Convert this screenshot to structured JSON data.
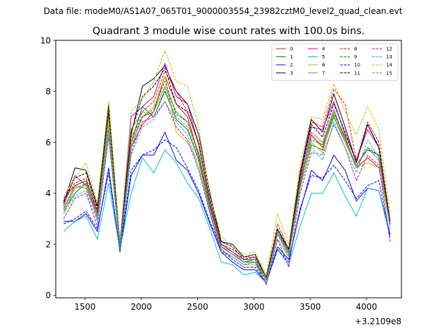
{
  "chart_data": {
    "type": "line",
    "suptitle": "Data file: modeM0/AS1A07_065T01_9000003554_23982cztM0_level2_quad_clean.evt",
    "title": "Quadrant 3 module wise count rates with 100.0s bins.",
    "xlabel": "",
    "ylabel": "",
    "x_offset_label": "+3.2109e8",
    "xlim": [
      1240,
      4310
    ],
    "ylim": [
      -0.1,
      10
    ],
    "x_ticks": [
      1500,
      2000,
      2500,
      3000,
      3500,
      4000
    ],
    "y_ticks": [
      0,
      2,
      4,
      6,
      8,
      10
    ],
    "x": [
      1310,
      1410,
      1510,
      1610,
      1710,
      1810,
      1910,
      2010,
      2110,
      2210,
      2310,
      2410,
      2510,
      2610,
      2710,
      2810,
      2910,
      3010,
      3110,
      3210,
      3310,
      3410,
      3510,
      3610,
      3710,
      3810,
      3910,
      4010,
      4110,
      4210
    ],
    "legend_position": "upper right",
    "legend_ncol": 4,
    "series": [
      {
        "name": "0",
        "color": "#ff0000",
        "dash": "solid",
        "values": [
          3.8,
          4.3,
          4.5,
          3.3,
          7.2,
          2.0,
          5.8,
          6.7,
          7.2,
          8.6,
          7.5,
          7.0,
          5.5,
          3.5,
          2.0,
          1.7,
          1.4,
          1.4,
          0.6,
          2.6,
          1.8,
          4.5,
          6.3,
          5.8,
          7.2,
          6.2,
          5.0,
          5.4,
          5.0,
          2.8
        ]
      },
      {
        "name": "1",
        "color": "#008000",
        "dash": "solid",
        "values": [
          3.3,
          4.0,
          4.4,
          3.0,
          7.5,
          1.9,
          6.0,
          7.4,
          7.0,
          8.0,
          6.9,
          6.5,
          5.3,
          3.4,
          1.9,
          1.6,
          1.3,
          1.3,
          0.6,
          2.4,
          1.6,
          4.3,
          5.9,
          5.7,
          7.0,
          6.0,
          5.1,
          5.7,
          5.5,
          2.8
        ]
      },
      {
        "name": "2",
        "color": "#0000ff",
        "dash": "solid",
        "values": [
          2.9,
          2.9,
          3.2,
          2.5,
          5.0,
          1.7,
          4.7,
          5.5,
          5.5,
          6.4,
          5.3,
          4.9,
          4.0,
          2.8,
          1.7,
          1.3,
          1.0,
          1.0,
          0.5,
          1.9,
          1.4,
          3.3,
          4.9,
          4.5,
          5.5,
          4.9,
          3.7,
          4.2,
          4.1,
          2.4
        ]
      },
      {
        "name": "3",
        "color": "#000000",
        "dash": "solid",
        "values": [
          3.6,
          5.0,
          4.9,
          3.5,
          7.5,
          2.0,
          6.3,
          8.2,
          8.5,
          9.0,
          8.0,
          7.5,
          6.3,
          4.0,
          2.1,
          2.0,
          1.5,
          1.6,
          0.7,
          2.6,
          1.8,
          4.8,
          6.9,
          6.4,
          7.9,
          6.6,
          5.2,
          6.7,
          5.8,
          2.9
        ]
      },
      {
        "name": "4",
        "color": "#bf00bf",
        "dash": "solid",
        "values": [
          3.5,
          4.7,
          4.3,
          3.2,
          7.1,
          1.9,
          7.0,
          7.4,
          7.8,
          9.1,
          7.8,
          7.5,
          5.9,
          3.6,
          2.0,
          1.7,
          1.4,
          1.4,
          0.6,
          2.5,
          1.7,
          4.6,
          6.6,
          6.5,
          7.6,
          6.3,
          5.3,
          6.5,
          5.8,
          2.8
        ]
      },
      {
        "name": "5",
        "color": "#00bfbf",
        "dash": "solid",
        "values": [
          2.5,
          2.9,
          3.1,
          2.2,
          4.4,
          1.8,
          4.0,
          5.4,
          4.8,
          5.7,
          5.2,
          4.4,
          3.8,
          2.6,
          1.3,
          1.2,
          0.8,
          0.9,
          0.5,
          1.8,
          1.2,
          2.7,
          4.0,
          4.0,
          4.8,
          3.9,
          3.1,
          4.2,
          4.1,
          2.3
        ]
      },
      {
        "name": "6",
        "color": "#bfbf00",
        "dash": "solid",
        "values": [
          3.2,
          4.2,
          4.3,
          3.0,
          6.9,
          1.9,
          6.0,
          7.0,
          7.4,
          8.6,
          6.4,
          6.0,
          5.2,
          3.2,
          1.8,
          1.5,
          1.2,
          1.2,
          0.6,
          2.2,
          1.5,
          4.2,
          6.0,
          5.6,
          7.2,
          6.0,
          5.0,
          5.2,
          5.0,
          2.7
        ]
      },
      {
        "name": "7",
        "color": "#808080",
        "dash": "solid",
        "values": [
          3.4,
          4.3,
          4.2,
          3.1,
          6.5,
          1.9,
          5.8,
          7.0,
          7.2,
          8.2,
          7.2,
          6.8,
          5.6,
          3.5,
          1.9,
          1.7,
          1.3,
          1.4,
          0.6,
          2.4,
          1.6,
          4.4,
          6.4,
          6.0,
          7.3,
          6.1,
          5.1,
          5.8,
          5.3,
          2.8
        ]
      },
      {
        "name": "8",
        "color": "#ff0000",
        "dash": "dashed",
        "values": [
          3.7,
          4.4,
          4.6,
          3.3,
          7.3,
          2.0,
          6.5,
          7.2,
          7.6,
          8.8,
          8.0,
          7.2,
          5.9,
          3.7,
          2.0,
          1.8,
          1.5,
          1.5,
          0.7,
          2.8,
          1.8,
          4.6,
          6.8,
          6.6,
          8.1,
          7.5,
          5.3,
          6.8,
          6.0,
          2.9
        ]
      },
      {
        "name": "9",
        "color": "#008000",
        "dash": "dashed",
        "values": [
          3.4,
          4.3,
          4.5,
          3.2,
          7.2,
          1.9,
          6.2,
          7.0,
          7.3,
          8.4,
          7.1,
          6.8,
          5.5,
          3.5,
          1.9,
          1.6,
          1.3,
          1.4,
          0.6,
          2.6,
          1.7,
          4.4,
          6.1,
          5.9,
          7.1,
          6.2,
          5.0,
          5.8,
          5.5,
          2.8
        ]
      },
      {
        "name": "10",
        "color": "#0000ff",
        "dash": "dashed",
        "values": [
          2.8,
          3.0,
          3.3,
          2.6,
          4.8,
          1.8,
          4.9,
          5.5,
          5.7,
          6.1,
          5.8,
          5.0,
          4.1,
          2.9,
          1.8,
          1.4,
          1.1,
          1.1,
          0.5,
          1.8,
          1.3,
          3.4,
          4.7,
          4.6,
          5.1,
          4.5,
          3.8,
          4.3,
          4.5,
          2.3
        ]
      },
      {
        "name": "11",
        "color": "#000000",
        "dash": "dashed",
        "values": [
          3.7,
          4.6,
          4.8,
          3.4,
          7.4,
          2.0,
          6.4,
          7.8,
          8.2,
          8.9,
          7.5,
          7.2,
          6.0,
          3.8,
          2.1,
          1.9,
          1.4,
          1.5,
          0.7,
          2.6,
          1.8,
          4.7,
          6.7,
          6.2,
          7.5,
          6.4,
          5.2,
          6.7,
          5.8,
          2.9
        ]
      },
      {
        "name": "12",
        "color": "#bf00bf",
        "dash": "dashed",
        "values": [
          3.0,
          3.8,
          4.0,
          2.7,
          6.2,
          1.8,
          5.6,
          6.8,
          7.0,
          7.6,
          6.6,
          6.1,
          4.9,
          3.2,
          1.7,
          1.5,
          1.2,
          1.3,
          0.4,
          2.2,
          1.1,
          4.0,
          5.6,
          5.5,
          6.7,
          5.8,
          4.5,
          5.5,
          5.1,
          2.1
        ]
      },
      {
        "name": "13",
        "color": "#00bfbf",
        "dash": "dashed",
        "values": [
          3.2,
          3.9,
          4.1,
          2.9,
          6.3,
          1.8,
          5.5,
          6.6,
          6.9,
          7.6,
          6.8,
          6.3,
          5.0,
          3.3,
          1.8,
          1.5,
          1.2,
          1.3,
          0.5,
          2.4,
          1.5,
          4.2,
          5.8,
          5.3,
          6.8,
          5.8,
          4.8,
          6.1,
          5.4,
          2.6
        ]
      },
      {
        "name": "14",
        "color": "#bfbf00",
        "dash": "dashed",
        "values": [
          3.9,
          4.6,
          5.2,
          3.6,
          7.6,
          2.1,
          7.2,
          7.7,
          8.4,
          9.6,
          8.4,
          8.2,
          6.6,
          3.9,
          2.3,
          1.9,
          1.6,
          1.7,
          0.8,
          3.2,
          2.0,
          5.1,
          7.0,
          6.9,
          8.3,
          7.2,
          6.3,
          7.4,
          6.5,
          3.2
        ]
      },
      {
        "name": "15",
        "color": "#808080",
        "dash": "dashed",
        "values": [
          3.3,
          4.2,
          4.4,
          3.0,
          6.7,
          1.9,
          5.9,
          7.2,
          7.0,
          8.1,
          7.0,
          6.6,
          5.4,
          3.4,
          1.9,
          1.6,
          1.3,
          1.4,
          0.6,
          2.5,
          1.6,
          4.4,
          6.2,
          5.9,
          7.2,
          6.1,
          5.0,
          5.8,
          5.3,
          2.8
        ]
      }
    ]
  }
}
